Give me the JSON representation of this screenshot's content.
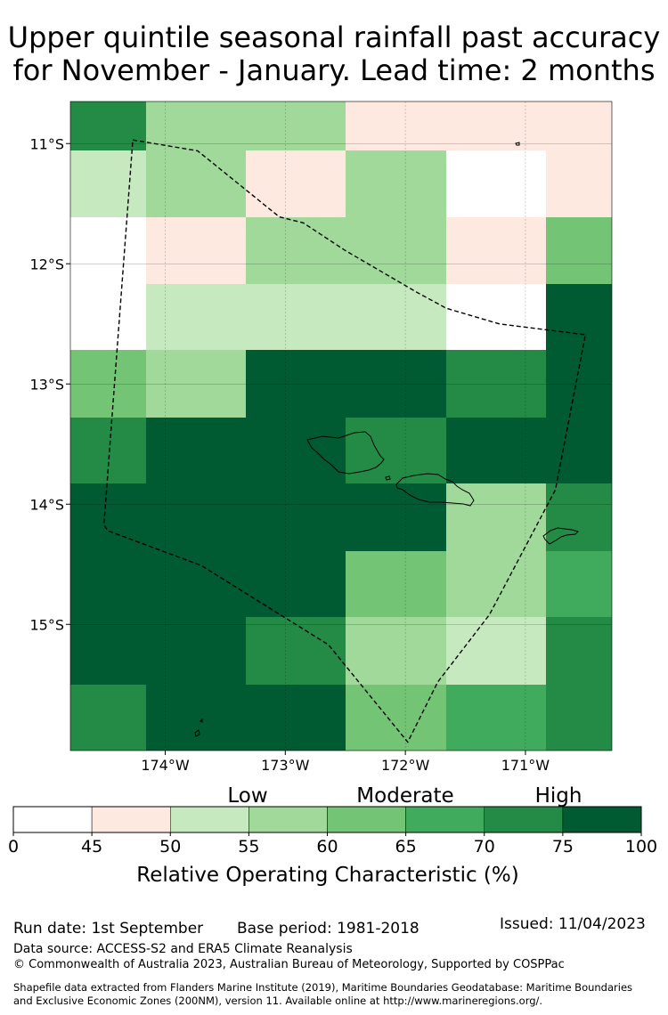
{
  "title_line1": "Upper quintile seasonal rainfall past accuracy",
  "title_line2": "for November - January. Lead time: 2 months",
  "map": {
    "lat_labels": [
      "11°S",
      "12°S",
      "13°S",
      "14°S",
      "15°S"
    ],
    "lon_labels": [
      "174°W",
      "173°W",
      "172°W",
      "171°W"
    ],
    "lat_values": [
      -11,
      -12,
      -13,
      -14,
      -15
    ],
    "lon_values": [
      -174,
      -173,
      -172,
      -171
    ],
    "lon_range": [
      -174.79,
      -170.28
    ],
    "lat_range": [
      -16.05,
      -10.65
    ],
    "col_edges": [
      -174.79,
      -174.16,
      -173.33,
      -172.5,
      -171.66,
      -170.83,
      -170.28
    ],
    "row_edges": [
      -10.65,
      -11.06,
      -11.61,
      -12.17,
      -12.72,
      -13.28,
      -13.83,
      -14.39,
      -14.94,
      -15.5,
      -16.05
    ],
    "grid_roc": [
      [
        70,
        57,
        57,
        47,
        47,
        47
      ],
      [
        52,
        57,
        47,
        57,
        40,
        47
      ],
      [
        40,
        47,
        57,
        57,
        47,
        62
      ],
      [
        40,
        52,
        52,
        52,
        40,
        80
      ],
      [
        62,
        57,
        80,
        80,
        72,
        80
      ],
      [
        72,
        80,
        80,
        72,
        80,
        80
      ],
      [
        80,
        80,
        80,
        80,
        57,
        72
      ],
      [
        80,
        80,
        80,
        62,
        57,
        67
      ],
      [
        80,
        80,
        72,
        57,
        52,
        72
      ],
      [
        72,
        80,
        80,
        62,
        67,
        72
      ]
    ],
    "eez_boundary": [
      [
        -174.27,
        -10.97
      ],
      [
        -173.73,
        -11.06
      ],
      [
        -173.05,
        -11.61
      ],
      [
        -172.85,
        -11.66
      ],
      [
        -172.5,
        -11.89
      ],
      [
        -171.9,
        -12.24
      ],
      [
        -171.66,
        -12.37
      ],
      [
        -171.22,
        -12.5
      ],
      [
        -170.5,
        -12.59
      ],
      [
        -170.75,
        -13.88
      ],
      [
        -171.3,
        -14.92
      ],
      [
        -171.73,
        -15.48
      ],
      [
        -171.98,
        -15.98
      ],
      [
        -172.64,
        -15.17
      ],
      [
        -173.7,
        -14.51
      ],
      [
        -174.48,
        -14.22
      ],
      [
        -174.51,
        -14.17
      ],
      [
        -174.27,
        -10.97
      ]
    ]
  },
  "colorbar": {
    "categories": [
      "Low",
      "Moderate",
      "High"
    ],
    "bounds": [
      0,
      45,
      50,
      55,
      60,
      65,
      70,
      75,
      100
    ],
    "tick_labels": [
      "0",
      "45",
      "50",
      "55",
      "60",
      "65",
      "70",
      "75",
      "100"
    ],
    "colors": [
      "#ffffff",
      "#fee9e1",
      "#c7e9c0",
      "#a1d99b",
      "#74c476",
      "#41ab5d",
      "#238b45",
      "#005a32"
    ],
    "label": "Relative Operating Characteristic (%)"
  },
  "footer": {
    "run_date": "Run date: 1st September",
    "base_period": "Base period: 1981-2018",
    "issued": "Issued: 11/04/2023",
    "data_source": "Data source: ACCESS-S2 and ERA5 Climate Reanalysis",
    "copyright": "© Commonwealth of Australia 2023, Australian Bureau of Meteorology, Supported by COSPPac",
    "shapefile_line1": "Shapefile data extracted from Flanders Marine Institute (2019), Maritime Boundaries Geodatabase: Maritime Boundaries",
    "shapefile_line2": "and Exclusive Economic Zones (200NM), version 11. Available online at http://www.marineregions.org/."
  }
}
